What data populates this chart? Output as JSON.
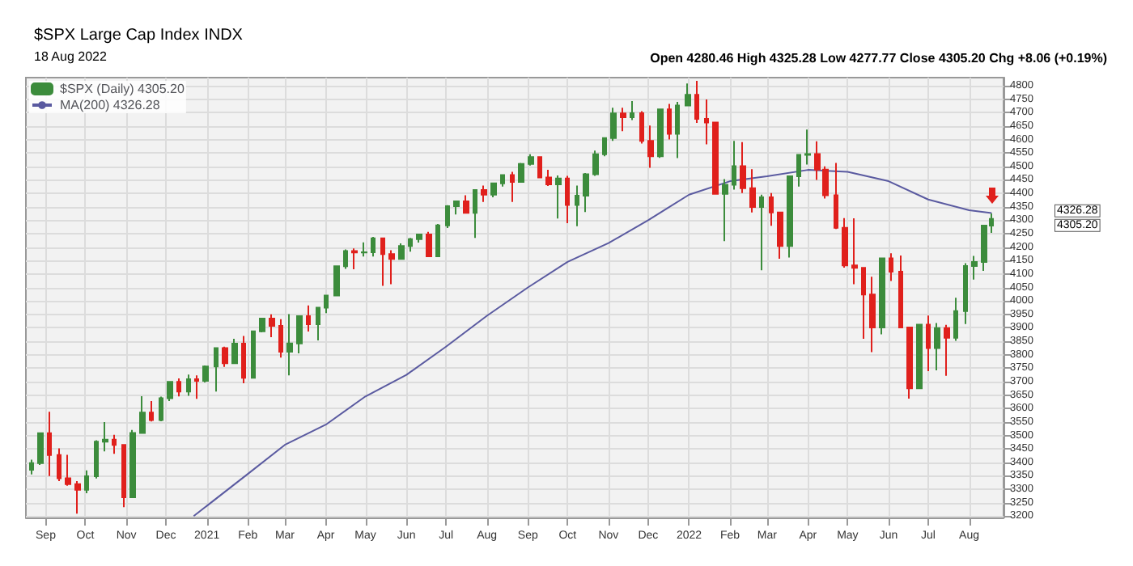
{
  "chart_data": {
    "type": "candlestick",
    "title": "$SPX Large Cap Index INDX",
    "subtitle": "18 Aug 2022",
    "annotations": [
      "Open 4280.46 High 4325.28 Low 4277.77 Close 4305.20 Chg +8.06 (+0.19%)",
      "4305.20",
      "4326.28"
    ],
    "legend": "top left",
    "grid": true,
    "xlim": [
      "2020-08-17",
      "2022-08-27"
    ],
    "xticks": [
      {
        "value": "2020-09-01",
        "label": "Sep"
      },
      {
        "value": "2020-10-01",
        "label": "Oct"
      },
      {
        "value": "2020-11-01",
        "label": "Nov"
      },
      {
        "value": "2020-12-01",
        "label": "Dec"
      },
      {
        "value": "2021-01-01",
        "label": "2021"
      },
      {
        "value": "2021-02-01",
        "label": "Feb"
      },
      {
        "value": "2021-03-01",
        "label": "Mar"
      },
      {
        "value": "2021-04-01",
        "label": "Apr"
      },
      {
        "value": "2021-05-01",
        "label": "May"
      },
      {
        "value": "2021-06-01",
        "label": "Jun"
      },
      {
        "value": "2021-07-01",
        "label": "Jul"
      },
      {
        "value": "2021-08-01",
        "label": "Aug"
      },
      {
        "value": "2021-09-01",
        "label": "Sep"
      },
      {
        "value": "2021-10-01",
        "label": "Oct"
      },
      {
        "value": "2021-11-01",
        "label": "Nov"
      },
      {
        "value": "2021-12-01",
        "label": "Dec"
      },
      {
        "value": "2022-01-01",
        "label": "2022"
      },
      {
        "value": "2022-02-01",
        "label": "Feb"
      },
      {
        "value": "2022-03-01",
        "label": "Mar"
      },
      {
        "value": "2022-04-01",
        "label": "Apr"
      },
      {
        "value": "2022-05-01",
        "label": "May"
      },
      {
        "value": "2022-06-01",
        "label": "Jun"
      },
      {
        "value": "2022-07-01",
        "label": "Jul"
      },
      {
        "value": "2022-08-01",
        "label": "Aug"
      }
    ],
    "ylim": [
      3195,
      4830
    ],
    "yticks": [
      3200,
      3250,
      3300,
      3350,
      3400,
      3450,
      3500,
      3550,
      3600,
      3650,
      3700,
      3750,
      3800,
      3850,
      3900,
      3950,
      4000,
      4050,
      4100,
      4150,
      4200,
      4250,
      4300,
      4350,
      4400,
      4450,
      4500,
      4550,
      4600,
      4650,
      4700,
      4750,
      4800
    ],
    "series": [
      {
        "name": "$SPX (Daily) 4305.20",
        "x": [
          "2020-08-21",
          "2020-08-28",
          "2020-09-04",
          "2020-09-11",
          "2020-09-18",
          "2020-09-25",
          "2020-10-02",
          "2020-10-09",
          "2020-10-16",
          "2020-10-23",
          "2020-10-30",
          "2020-11-06",
          "2020-11-13",
          "2020-11-20",
          "2020-11-27",
          "2020-12-04",
          "2020-12-11",
          "2020-12-18",
          "2020-12-24",
          "2020-12-31",
          "2021-01-08",
          "2021-01-15",
          "2021-01-22",
          "2021-01-29",
          "2021-02-05",
          "2021-02-12",
          "2021-02-19",
          "2021-02-26",
          "2021-03-05",
          "2021-03-12",
          "2021-03-19",
          "2021-03-26",
          "2021-04-01",
          "2021-04-09",
          "2021-04-16",
          "2021-04-23",
          "2021-04-30",
          "2021-05-07",
          "2021-05-14",
          "2021-05-21",
          "2021-05-28",
          "2021-06-04",
          "2021-06-11",
          "2021-06-18",
          "2021-06-25",
          "2021-07-02",
          "2021-07-09",
          "2021-07-16",
          "2021-07-23",
          "2021-07-30",
          "2021-08-06",
          "2021-08-13",
          "2021-08-20",
          "2021-08-27",
          "2021-09-03",
          "2021-09-10",
          "2021-09-17",
          "2021-09-24",
          "2021-10-01",
          "2021-10-08",
          "2021-10-15",
          "2021-10-22",
          "2021-10-29",
          "2021-11-05",
          "2021-11-12",
          "2021-11-19",
          "2021-11-26",
          "2021-12-03",
          "2021-12-10",
          "2021-12-17",
          "2021-12-23",
          "2021-12-31",
          "2022-01-07",
          "2022-01-14",
          "2022-01-21",
          "2022-01-28",
          "2022-02-04",
          "2022-02-11",
          "2022-02-18",
          "2022-02-25",
          "2022-03-04",
          "2022-03-11",
          "2022-03-18",
          "2022-03-25",
          "2022-04-01",
          "2022-04-08",
          "2022-04-14",
          "2022-04-22",
          "2022-04-29",
          "2022-05-06",
          "2022-05-13",
          "2022-05-20",
          "2022-05-27",
          "2022-06-03",
          "2022-06-10",
          "2022-06-17",
          "2022-06-24",
          "2022-07-01",
          "2022-07-08",
          "2022-07-15",
          "2022-07-22",
          "2022-07-29",
          "2022-08-05",
          "2022-08-12",
          "2022-08-18"
        ],
        "ohlc": [
          [
            3372,
            3410,
            3355,
            3397
          ],
          [
            3397,
            3509,
            3390,
            3508
          ],
          [
            3508,
            3588,
            3349,
            3427
          ],
          [
            3427,
            3452,
            3330,
            3341
          ],
          [
            3341,
            3428,
            3313,
            3319
          ],
          [
            3319,
            3330,
            3209,
            3298
          ],
          [
            3298,
            3370,
            3285,
            3348
          ],
          [
            3348,
            3482,
            3340,
            3477
          ],
          [
            3477,
            3550,
            3441,
            3484
          ],
          [
            3484,
            3502,
            3432,
            3465
          ],
          [
            3465,
            3465,
            3233,
            3270
          ],
          [
            3270,
            3520,
            3270,
            3509
          ],
          [
            3509,
            3646,
            3507,
            3585
          ],
          [
            3585,
            3628,
            3552,
            3557
          ],
          [
            3557,
            3644,
            3553,
            3638
          ],
          [
            3638,
            3700,
            3628,
            3699
          ],
          [
            3699,
            3712,
            3645,
            3663
          ],
          [
            3663,
            3726,
            3647,
            3709
          ],
          [
            3709,
            3723,
            3636,
            3703
          ],
          [
            3703,
            3760,
            3697,
            3756
          ],
          [
            3756,
            3826,
            3663,
            3825
          ],
          [
            3825,
            3830,
            3755,
            3768
          ],
          [
            3768,
            3859,
            3768,
            3841
          ],
          [
            3841,
            3870,
            3694,
            3714
          ],
          [
            3714,
            3888,
            3714,
            3887
          ],
          [
            3887,
            3937,
            3883,
            3934
          ],
          [
            3934,
            3950,
            3865,
            3907
          ],
          [
            3907,
            3932,
            3789,
            3811
          ],
          [
            3811,
            3951,
            3723,
            3842
          ],
          [
            3842,
            3944,
            3805,
            3943
          ],
          [
            3943,
            3983,
            3886,
            3913
          ],
          [
            3913,
            3978,
            3853,
            3975
          ],
          [
            3975,
            4020,
            3955,
            4020
          ],
          [
            4020,
            4130,
            4020,
            4129
          ],
          [
            4129,
            4191,
            4119,
            4185
          ],
          [
            4185,
            4195,
            4118,
            4180
          ],
          [
            4180,
            4218,
            4165,
            4181
          ],
          [
            4181,
            4238,
            4165,
            4233
          ],
          [
            4233,
            4236,
            4056,
            4174
          ],
          [
            4174,
            4188,
            4062,
            4156
          ],
          [
            4156,
            4214,
            4155,
            4204
          ],
          [
            4204,
            4234,
            4183,
            4230
          ],
          [
            4230,
            4249,
            4217,
            4247
          ],
          [
            4247,
            4257,
            4165,
            4166
          ],
          [
            4166,
            4286,
            4165,
            4281
          ],
          [
            4281,
            4356,
            4271,
            4352
          ],
          [
            4352,
            4372,
            4321,
            4370
          ],
          [
            4370,
            4393,
            4327,
            4327
          ],
          [
            4327,
            4415,
            4234,
            4412
          ],
          [
            4412,
            4429,
            4368,
            4395
          ],
          [
            4395,
            4440,
            4385,
            4437
          ],
          [
            4437,
            4471,
            4425,
            4468
          ],
          [
            4468,
            4480,
            4368,
            4442
          ],
          [
            4442,
            4513,
            4441,
            4509
          ],
          [
            4509,
            4545,
            4503,
            4535
          ],
          [
            4535,
            4536,
            4458,
            4459
          ],
          [
            4459,
            4487,
            4427,
            4433
          ],
          [
            4433,
            4466,
            4306,
            4455
          ],
          [
            4455,
            4465,
            4289,
            4357
          ],
          [
            4357,
            4429,
            4278,
            4391
          ],
          [
            4391,
            4475,
            4330,
            4471
          ],
          [
            4471,
            4559,
            4465,
            4545
          ],
          [
            4545,
            4608,
            4538,
            4605
          ],
          [
            4605,
            4718,
            4595,
            4697
          ],
          [
            4697,
            4718,
            4631,
            4683
          ],
          [
            4683,
            4743,
            4672,
            4698
          ],
          [
            4698,
            4705,
            4585,
            4595
          ],
          [
            4595,
            4652,
            4495,
            4538
          ],
          [
            4538,
            4713,
            4532,
            4712
          ],
          [
            4712,
            4732,
            4600,
            4621
          ],
          [
            4621,
            4740,
            4531,
            4726
          ],
          [
            4726,
            4808,
            4723,
            4766
          ],
          [
            4766,
            4818,
            4662,
            4677
          ],
          [
            4677,
            4749,
            4582,
            4663
          ],
          [
            4663,
            4663,
            4395,
            4398
          ],
          [
            4398,
            4453,
            4222,
            4432
          ],
          [
            4432,
            4595,
            4414,
            4501
          ],
          [
            4501,
            4590,
            4401,
            4419
          ],
          [
            4419,
            4490,
            4329,
            4349
          ],
          [
            4349,
            4395,
            4114,
            4385
          ],
          [
            4385,
            4401,
            4279,
            4329
          ],
          [
            4329,
            4331,
            4157,
            4204
          ],
          [
            4204,
            4465,
            4161,
            4463
          ],
          [
            4463,
            4546,
            4425,
            4543
          ],
          [
            4543,
            4637,
            4507,
            4546
          ],
          [
            4546,
            4593,
            4450,
            4488
          ],
          [
            4488,
            4500,
            4381,
            4393
          ],
          [
            4393,
            4513,
            4267,
            4272
          ],
          [
            4272,
            4308,
            4124,
            4132
          ],
          [
            4132,
            4307,
            4062,
            4123
          ],
          [
            4123,
            4123,
            3859,
            4024
          ],
          [
            4024,
            4090,
            3810,
            3901
          ],
          [
            3901,
            4158,
            3876,
            4158
          ],
          [
            4158,
            4177,
            4074,
            4109
          ],
          [
            4109,
            4169,
            3900,
            3901
          ],
          [
            3901,
            3901,
            3637,
            3675
          ],
          [
            3675,
            3913,
            3674,
            3912
          ],
          [
            3912,
            3946,
            3739,
            3825
          ],
          [
            3825,
            3918,
            3742,
            3899
          ],
          [
            3899,
            3911,
            3722,
            3863
          ],
          [
            3863,
            4012,
            3852,
            3962
          ],
          [
            3962,
            4140,
            3914,
            4130
          ],
          [
            4130,
            4167,
            4079,
            4145
          ],
          [
            4145,
            4280,
            4112,
            4280
          ],
          [
            4280,
            4325,
            4253,
            4305
          ]
        ],
        "colors": [
          "#3c8c3c",
          "#3c8c3c",
          "#e0201c",
          "#e0201c",
          "#e0201c",
          "#e0201c",
          "#3c8c3c",
          "#3c8c3c",
          "#3c8c3c",
          "#e0201c",
          "#e0201c",
          "#3c8c3c",
          "#3c8c3c",
          "#e0201c",
          "#3c8c3c",
          "#3c8c3c",
          "#e0201c",
          "#3c8c3c",
          "#e0201c",
          "#3c8c3c",
          "#3c8c3c",
          "#e0201c",
          "#3c8c3c",
          "#e0201c",
          "#3c8c3c",
          "#3c8c3c",
          "#e0201c",
          "#e0201c",
          "#3c8c3c",
          "#3c8c3c",
          "#e0201c",
          "#3c8c3c",
          "#3c8c3c",
          "#3c8c3c",
          "#3c8c3c",
          "#e0201c",
          "#3c8c3c",
          "#3c8c3c",
          "#e0201c",
          "#e0201c",
          "#3c8c3c",
          "#3c8c3c",
          "#3c8c3c",
          "#e0201c",
          "#3c8c3c",
          "#3c8c3c",
          "#3c8c3c",
          "#e0201c",
          "#3c8c3c",
          "#e0201c",
          "#3c8c3c",
          "#3c8c3c",
          "#e0201c",
          "#3c8c3c",
          "#3c8c3c",
          "#e0201c",
          "#e0201c",
          "#3c8c3c",
          "#e0201c",
          "#3c8c3c",
          "#3c8c3c",
          "#3c8c3c",
          "#3c8c3c",
          "#3c8c3c",
          "#e0201c",
          "#3c8c3c",
          "#e0201c",
          "#e0201c",
          "#3c8c3c",
          "#e0201c",
          "#3c8c3c",
          "#3c8c3c",
          "#e0201c",
          "#e0201c",
          "#e0201c",
          "#3c8c3c",
          "#3c8c3c",
          "#e0201c",
          "#e0201c",
          "#3c8c3c",
          "#e0201c",
          "#e0201c",
          "#3c8c3c",
          "#3c8c3c",
          "#3c8c3c",
          "#e0201c",
          "#e0201c",
          "#e0201c",
          "#e0201c",
          "#e0201c",
          "#e0201c",
          "#e0201c",
          "#3c8c3c",
          "#e0201c",
          "#e0201c",
          "#e0201c",
          "#3c8c3c",
          "#e0201c",
          "#3c8c3c",
          "#e0201c",
          "#3c8c3c",
          "#3c8c3c",
          "#3c8c3c",
          "#3c8c3c",
          "#3c8c3c"
        ]
      },
      {
        "name": "MA(200) 4326.28",
        "type": "line",
        "color": "#5a5aa0",
        "x": [
          "2020-12-22",
          "2021-02-01",
          "2021-03-01",
          "2021-04-01",
          "2021-05-01",
          "2021-06-01",
          "2021-07-01",
          "2021-08-01",
          "2021-09-01",
          "2021-10-01",
          "2021-11-01",
          "2021-12-01",
          "2022-01-01",
          "2022-02-01",
          "2022-03-01",
          "2022-04-01",
          "2022-05-01",
          "2022-06-01",
          "2022-07-01",
          "2022-08-01",
          "2022-08-18"
        ],
        "values": [
          3200,
          3357,
          3465,
          3540,
          3645,
          3725,
          3830,
          3945,
          4050,
          4145,
          4215,
          4300,
          4395,
          4445,
          4463,
          4487,
          4480,
          4445,
          4377,
          4337,
          4326.28
        ]
      }
    ]
  }
}
